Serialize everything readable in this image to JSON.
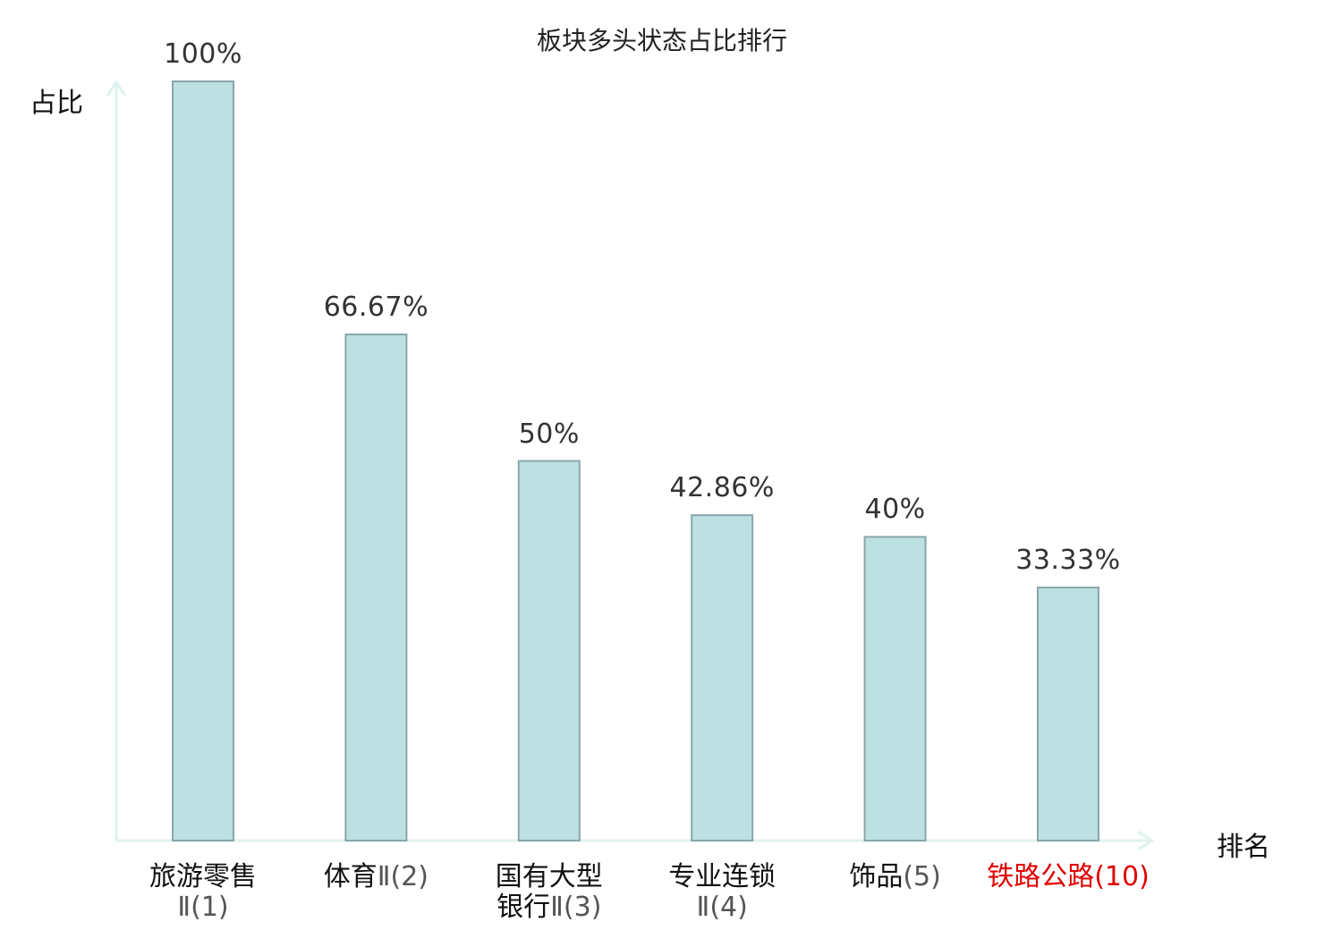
{
  "chart_data": {
    "type": "bar",
    "title": "板块多头状态占比排行",
    "ylabel": "占比",
    "xlabel": "排名",
    "ylim": [
      0,
      100
    ],
    "grid": false,
    "value_suffix": "%",
    "categories": [
      {
        "lines": [
          "旅游零售",
          "Ⅱ(1)"
        ],
        "name_parts": [
          "旅游零售"
        ],
        "rank": "Ⅱ(1)",
        "highlight": false
      },
      {
        "lines": [
          "体育Ⅱ(2)"
        ],
        "name_parts": [
          "体育"
        ],
        "rank": "Ⅱ(2)",
        "highlight": false
      },
      {
        "lines": [
          "国有大型",
          "银行Ⅱ(3)"
        ],
        "name_parts": [
          "国有大型",
          "银行"
        ],
        "rank": "Ⅱ(3)",
        "highlight": false
      },
      {
        "lines": [
          "专业连锁",
          "Ⅱ(4)"
        ],
        "name_parts": [
          "专业连锁"
        ],
        "rank": "Ⅱ(4)",
        "highlight": false
      },
      {
        "lines": [
          "饰品(5)"
        ],
        "name_parts": [
          "饰品"
        ],
        "rank": "(5)",
        "highlight": false
      },
      {
        "lines": [
          "铁路公路(10)"
        ],
        "name_parts": [
          "铁路公路"
        ],
        "rank": "(10)",
        "highlight": true
      }
    ],
    "values": [
      100,
      66.67,
      50,
      42.86,
      40,
      33.33
    ],
    "value_labels": [
      "100%",
      "66.67%",
      "50%",
      "42.86%",
      "40%",
      "33.33%"
    ],
    "colors": {
      "bar_fill": "#bde0e3",
      "bar_stroke": "#8aa7aa",
      "axis": "#e0f2ef",
      "highlight": "#e00000"
    }
  }
}
